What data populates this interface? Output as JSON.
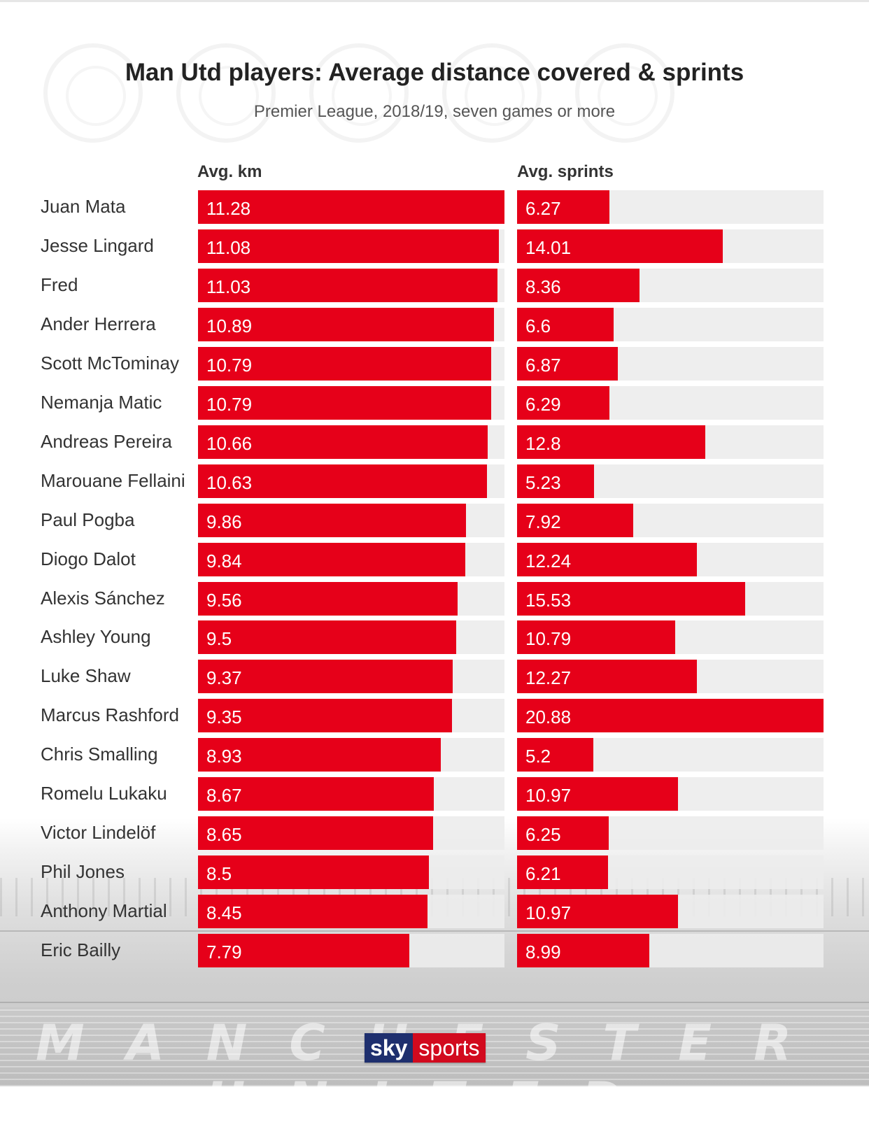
{
  "chart_data": {
    "type": "bar",
    "title": "Man Utd players: Average distance covered & sprints",
    "subtitle": "Premier League, 2018/19, seven games or more",
    "orientation": "horizontal",
    "categories": [
      "Juan Mata",
      "Jesse Lingard",
      "Fred",
      "Ander Herrera",
      "Scott McTominay",
      "Nemanja Matic",
      "Andreas Pereira",
      "Marouane Fellaini",
      "Paul Pogba",
      "Diogo Dalot",
      "Alexis Sánchez",
      "Ashley Young",
      "Luke Shaw",
      "Marcus Rashford",
      "Chris Smalling",
      "Romelu Lukaku",
      "Victor Lindelöf",
      "Phil Jones",
      "Anthony Martial",
      "Eric Bailly"
    ],
    "series": [
      {
        "name": "Avg. km",
        "values": [
          11.28,
          11.08,
          11.03,
          10.89,
          10.79,
          10.79,
          10.66,
          10.63,
          9.86,
          9.84,
          9.56,
          9.5,
          9.37,
          9.35,
          8.93,
          8.67,
          8.65,
          8.5,
          8.45,
          7.79
        ],
        "labels": [
          "11.28",
          "11.08",
          "11.03",
          "10.89",
          "10.79",
          "10.79",
          "10.66",
          "10.63",
          "9.86",
          "9.84",
          "9.56",
          "9.5",
          "9.37",
          "9.35",
          "8.93",
          "8.67",
          "8.65",
          "8.5",
          "8.45",
          "7.79"
        ],
        "xlim": [
          0,
          11.28
        ]
      },
      {
        "name": "Avg. sprints",
        "values": [
          6.27,
          14.01,
          8.36,
          6.6,
          6.87,
          6.29,
          12.8,
          5.23,
          7.92,
          12.24,
          15.53,
          10.79,
          12.27,
          20.88,
          5.2,
          10.97,
          6.25,
          6.21,
          10.97,
          8.99
        ],
        "labels": [
          "6.27",
          "14.01",
          "8.36",
          "6.6",
          "6.87",
          "6.29",
          "12.8",
          "5.23",
          "7.92",
          "12.24",
          "15.53",
          "10.79",
          "12.27",
          "20.88",
          "5.2",
          "10.97",
          "6.25",
          "6.21",
          "10.97",
          "8.99"
        ],
        "xlim": [
          0,
          20.88
        ]
      }
    ],
    "bar_color": "#e60019",
    "track_color": "#ececec",
    "grid": false,
    "legend": "none"
  },
  "branding": {
    "logo_sky": "sky",
    "logo_sports": "sports",
    "stand_text": "MANCHESTER UNITED"
  }
}
